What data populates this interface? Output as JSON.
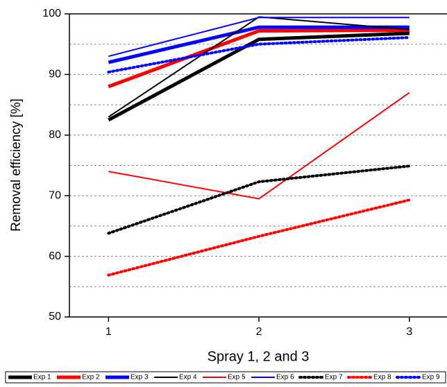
{
  "chart_data": {
    "type": "line",
    "x_label": "Spray 1, 2 and 3",
    "y_label": "Removal efficiency [%]",
    "x": [
      1,
      2,
      3
    ],
    "xlim": [
      0.74,
      3.25
    ],
    "xticks": [
      1,
      2,
      3
    ],
    "ylim": [
      50,
      100
    ],
    "yticks": [
      50,
      60,
      70,
      80,
      90,
      100
    ],
    "minor_yticks": [
      55,
      65,
      75,
      85,
      95
    ],
    "grid": true,
    "legend": "bottom",
    "series": [
      {
        "name": "Exp 1",
        "color": "#000000",
        "width": 5,
        "dash": "solid",
        "values": [
          82.5,
          95.8,
          96.8
        ]
      },
      {
        "name": "Exp 2",
        "color": "#ff0000",
        "width": 5,
        "dash": "solid",
        "values": [
          88,
          97.2,
          97.3
        ]
      },
      {
        "name": "Exp 3",
        "color": "#0000ff",
        "width": 5,
        "dash": "solid",
        "values": [
          92,
          97.8,
          97.8
        ]
      },
      {
        "name": "Exp 4",
        "color": "#000000",
        "width": 2,
        "dash": "solid",
        "values": [
          83,
          99.5,
          97.4
        ]
      },
      {
        "name": "Exp 5",
        "color": "#ff0000",
        "width": 2,
        "dash": "solid",
        "values": [
          74,
          69.5,
          87
        ]
      },
      {
        "name": "Exp 6",
        "color": "#0000ff",
        "width": 2,
        "dash": "solid",
        "values": [
          93,
          99.4,
          99.4
        ]
      },
      {
        "name": "Exp 7",
        "color": "#000000",
        "width": 4,
        "dash": "dot",
        "values": [
          63.8,
          72.3,
          74.9
        ]
      },
      {
        "name": "Exp 8",
        "color": "#ff0000",
        "width": 4,
        "dash": "dot",
        "values": [
          56.9,
          63.3,
          69.3
        ]
      },
      {
        "name": "Exp 9",
        "color": "#0000ff",
        "width": 4,
        "dash": "dot",
        "values": [
          90.4,
          95,
          96.1
        ]
      }
    ]
  }
}
